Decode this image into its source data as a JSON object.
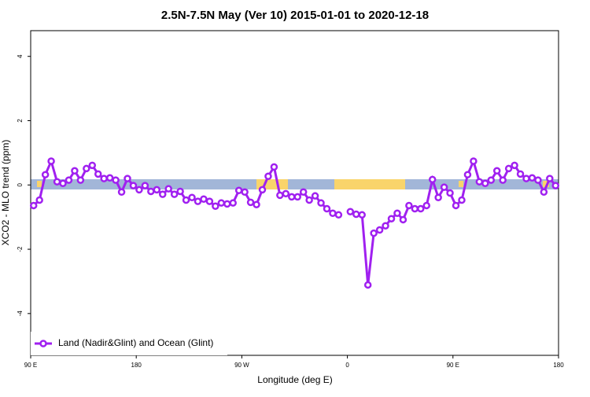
{
  "chart_data": {
    "type": "line",
    "title": "2.5N-7.5N May (Ver 10)   2015-01-01 to 2020-12-18",
    "x_label": "Longitude (deg E)",
    "y_label": "XCO2 - MLO trend (ppm)",
    "x": [
      92.5,
      97.5,
      102.5,
      107.5,
      112.5,
      117.5,
      122.5,
      127.5,
      132.5,
      137.5,
      142.5,
      147.5,
      152.5,
      157.5,
      162.5,
      167.5,
      172.5,
      177.5,
      182.5,
      187.5,
      192.5,
      197.5,
      202.5,
      207.5,
      212.5,
      217.5,
      222.5,
      227.5,
      232.5,
      237.5,
      242.5,
      247.5,
      252.5,
      257.5,
      262.5,
      267.5,
      272.5,
      277.5,
      282.5,
      287.5,
      292.5,
      297.5,
      302.5,
      307.5,
      312.5,
      317.5,
      322.5,
      327.5,
      332.5,
      337.5,
      342.5,
      347.5,
      352.5,
      357.5,
      362.5,
      367.5,
      372.5,
      377.5,
      382.5,
      387.5,
      392.5,
      397.5,
      402.5,
      407.5,
      412.5,
      417.5,
      422.5,
      427.5,
      432.5,
      437.5,
      442.5,
      447.5,
      452.5,
      457.5,
      462.5,
      467.5,
      472.5,
      477.5,
      482.5,
      487.5,
      492.5,
      497.5,
      502.5,
      507.5,
      512.5,
      517.5,
      522.5,
      527.5,
      532.5,
      537.5
    ],
    "series": [
      {
        "name": "Land (Nadir&Glint) and Ocean (Glint)",
        "color": "#a020f0",
        "values": [
          -0.64,
          -0.47,
          0.32,
          0.74,
          0.1,
          0.05,
          0.15,
          0.44,
          0.15,
          0.51,
          0.61,
          0.34,
          0.2,
          0.22,
          0.15,
          -0.22,
          0.2,
          -0.02,
          -0.15,
          -0.02,
          -0.2,
          -0.15,
          -0.29,
          -0.12,
          -0.29,
          -0.2,
          -0.47,
          -0.39,
          -0.51,
          -0.44,
          -0.51,
          -0.66,
          -0.56,
          -0.59,
          -0.56,
          -0.17,
          -0.22,
          -0.54,
          -0.61,
          -0.15,
          0.27,
          0.56,
          -0.32,
          -0.27,
          -0.37,
          -0.37,
          -0.22,
          -0.47,
          -0.34,
          -0.56,
          -0.74,
          -0.88,
          -0.93,
          null,
          -0.83,
          -0.91,
          -0.93,
          -3.11,
          -1.5,
          -1.4,
          -1.27,
          -1.05,
          -0.88,
          -1.08,
          -0.64,
          -0.74,
          -0.74,
          -0.64,
          0.17,
          -0.39,
          -0.07,
          -0.25,
          -0.64,
          -0.47,
          0.32,
          0.74,
          0.1,
          0.05,
          0.15,
          0.44,
          0.15,
          0.51,
          0.61,
          0.34,
          0.2,
          0.22,
          0.15,
          -0.22,
          0.2,
          -0.02
        ]
      }
    ],
    "xlim": [
      90,
      540
    ],
    "xticks": [
      {
        "value": 90,
        "label": "90 E"
      },
      {
        "value": 180,
        "label": "180"
      },
      {
        "value": 270,
        "label": "90 W"
      },
      {
        "value": 360,
        "label": "0"
      },
      {
        "value": 450,
        "label": "90 E"
      },
      {
        "value": 540,
        "label": "180"
      }
    ],
    "ylim": [
      -5.3,
      4.8
    ],
    "yticks": [
      -4,
      -2,
      0,
      2,
      4
    ],
    "legend": "bottom-left"
  }
}
